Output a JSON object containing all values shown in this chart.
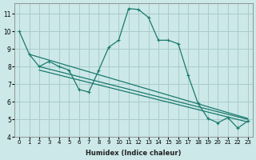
{
  "xlabel": "Humidex (Indice chaleur)",
  "bg_color": "#cce8e8",
  "grid_color": "#aacccc",
  "line_color": "#1a7a6e",
  "xlim": [
    -0.5,
    23.5
  ],
  "ylim": [
    4,
    11.6
  ],
  "xticks": [
    0,
    1,
    2,
    3,
    4,
    5,
    6,
    7,
    8,
    9,
    10,
    11,
    12,
    13,
    14,
    15,
    16,
    17,
    18,
    19,
    20,
    21,
    22,
    23
  ],
  "yticks": [
    4,
    5,
    6,
    7,
    8,
    9,
    10,
    11
  ],
  "line1_x": [
    0,
    1,
    2,
    3,
    4,
    5,
    6,
    7,
    8,
    9,
    10,
    11,
    12,
    13,
    14,
    15,
    16,
    17,
    18,
    19,
    20,
    21,
    22,
    23
  ],
  "line1_y": [
    10.0,
    8.7,
    8.0,
    8.3,
    8.0,
    7.8,
    6.7,
    6.55,
    7.8,
    9.1,
    9.5,
    11.3,
    11.25,
    10.8,
    9.5,
    9.5,
    9.3,
    7.5,
    5.9,
    5.05,
    4.8,
    5.1,
    4.5,
    4.9
  ],
  "line2_x": [
    1,
    23
  ],
  "line2_y": [
    8.7,
    5.05
  ],
  "line3_x": [
    2,
    23
  ],
  "line3_y": [
    8.0,
    5.0
  ],
  "line4_x": [
    2,
    23
  ],
  "line4_y": [
    7.8,
    4.85
  ]
}
